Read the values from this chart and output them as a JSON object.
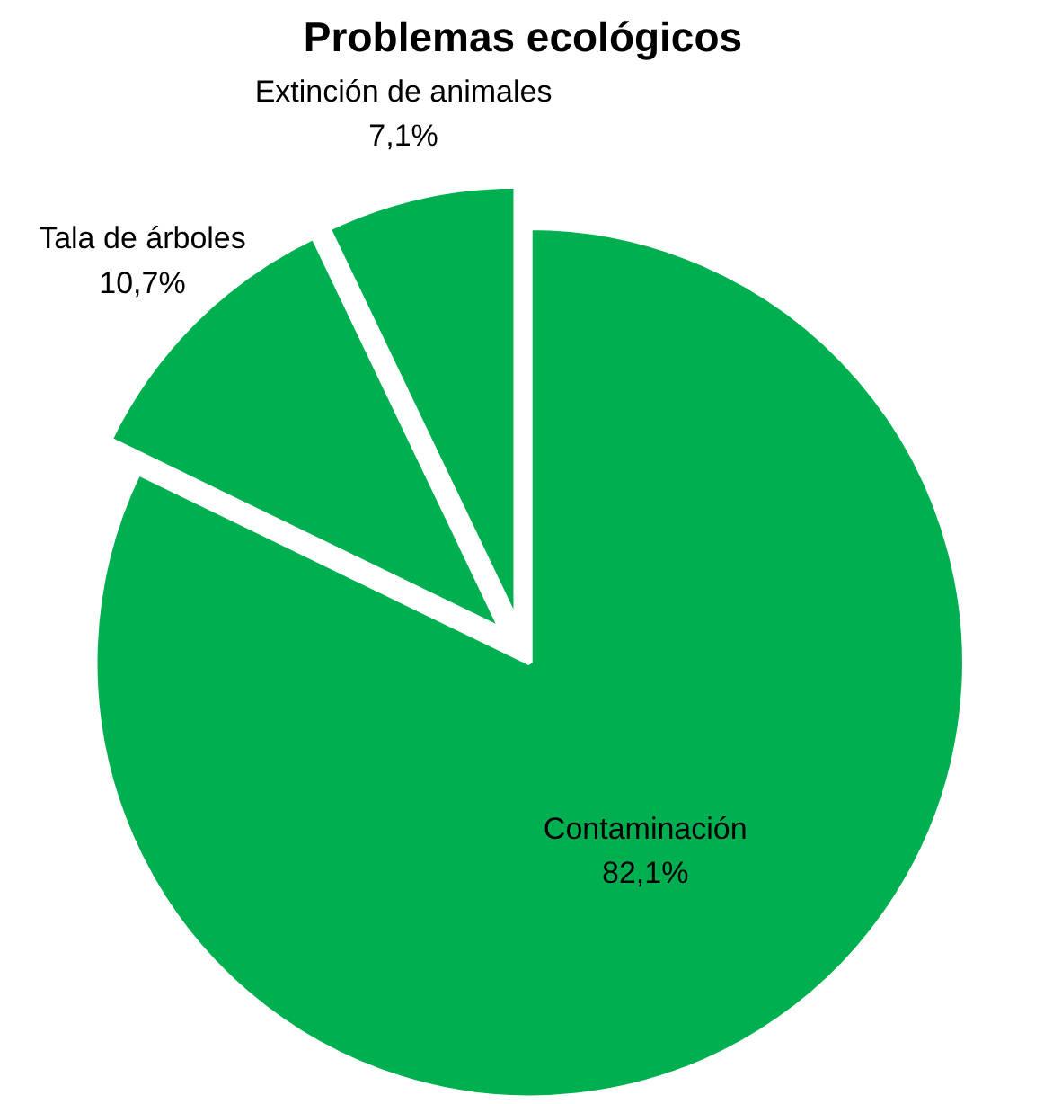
{
  "chart_data": {
    "type": "pie",
    "title": "Problemas ecológicos",
    "categories": [
      "Contaminación",
      "Tala de árboles",
      "Extinción de animales"
    ],
    "values": [
      82.1,
      10.7,
      7.1
    ],
    "value_labels": [
      "82,1%",
      "10,7%",
      "7,1%"
    ],
    "colors": [
      "#00b050",
      "#00b050",
      "#00b050"
    ],
    "legend": false
  }
}
